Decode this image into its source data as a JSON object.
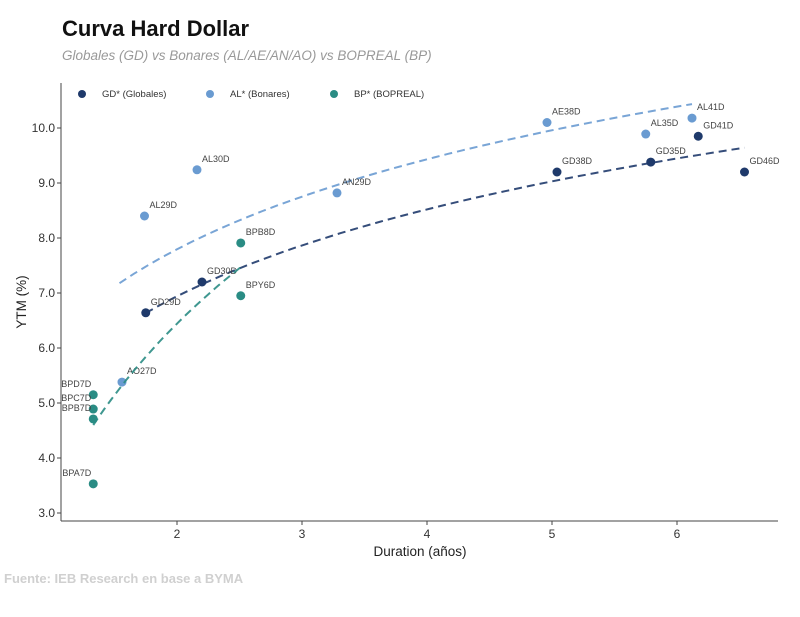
{
  "chart_data": {
    "type": "scatter",
    "title": "Curva Hard Dollar",
    "subtitle": "Globales (GD) vs Bonares (AL/AE/AN/AO) vs BOPREAL (BP)",
    "xlabel": "Duration (años)",
    "ylabel": "YTM (%)",
    "xlim": [
      1,
      6.8
    ],
    "ylim": [
      2.85,
      10.85
    ],
    "xticks": [
      2,
      3,
      4,
      5,
      6
    ],
    "yticks": [
      3.0,
      4.0,
      5.0,
      6.0,
      7.0,
      8.0,
      9.0,
      10.0
    ],
    "grid": false,
    "legend_position": "top-left",
    "series": [
      {
        "name": "GD* (Globales)",
        "color": "#1f3a6b",
        "trend": {
          "form": "log",
          "a": 5.36,
          "b": 2.28,
          "x_range": [
            1.75,
            6.54
          ]
        },
        "points": [
          {
            "label": "GD29D",
            "x": 1.75,
            "y": 6.64
          },
          {
            "label": "GD30D",
            "x": 2.2,
            "y": 7.2
          },
          {
            "label": "GD38D",
            "x": 5.04,
            "y": 9.2
          },
          {
            "label": "GD35D",
            "x": 5.79,
            "y": 9.38
          },
          {
            "label": "GD41D",
            "x": 6.17,
            "y": 9.85
          },
          {
            "label": "GD46D",
            "x": 6.54,
            "y": 9.2
          }
        ]
      },
      {
        "name": "AL* (Bonares)",
        "color": "#6a9bd1",
        "trend": {
          "form": "log",
          "a": 6.16,
          "b": 2.36,
          "x_range": [
            1.54,
            6.12
          ]
        },
        "points": [
          {
            "label": "AL29D",
            "x": 1.74,
            "y": 8.4
          },
          {
            "label": "AL30D",
            "x": 2.16,
            "y": 9.24
          },
          {
            "label": "AN29D",
            "x": 3.28,
            "y": 8.82
          },
          {
            "label": "AE38D",
            "x": 4.96,
            "y": 10.1
          },
          {
            "label": "AL35D",
            "x": 5.75,
            "y": 9.89
          },
          {
            "label": "AL41D",
            "x": 6.12,
            "y": 10.18
          },
          {
            "label": "AO27D",
            "x": 1.56,
            "y": 5.38
          }
        ]
      },
      {
        "name": "BP* (BOPREAL)",
        "color": "#2a8c84",
        "trend": {
          "form": "log",
          "a": 3.31,
          "b": 4.52,
          "x_range": [
            1.33,
            2.51
          ]
        },
        "points": [
          {
            "label": "BPD7D",
            "x": 1.33,
            "y": 5.15
          },
          {
            "label": "BPC7D",
            "x": 1.33,
            "y": 4.89
          },
          {
            "label": "BPB7D",
            "x": 1.33,
            "y": 4.71
          },
          {
            "label": "BPA7D",
            "x": 1.33,
            "y": 3.53
          },
          {
            "label": "BPB8D",
            "x": 2.51,
            "y": 7.91
          },
          {
            "label": "BPY6D",
            "x": 2.51,
            "y": 6.95
          }
        ]
      }
    ]
  },
  "source": "Fuente: IEB Research en base a BYMA"
}
